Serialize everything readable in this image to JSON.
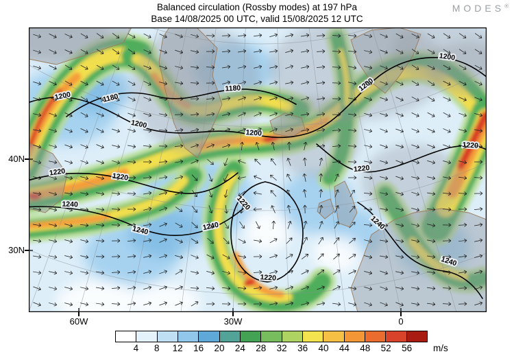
{
  "header": {
    "title": "Balanced circulation (Rossby modes) at 197 hPa",
    "subtitle": "Base 14/08/2025 00 UTC, valid 15/08/2025 12 UTC",
    "brand": "MODES",
    "brand_mark": "®"
  },
  "chart_data": {
    "type": "heatmap",
    "title": "Balanced circulation (Rossby modes) at 197 hPa",
    "subtitle": "Base 14/08/2025 00 UTC, valid 15/08/2025 12 UTC",
    "level_hPa": 197,
    "base_time": "14/08/2025 00 UTC",
    "valid_time": "15/08/2025 12 UTC",
    "x_axis": {
      "ticks": [
        "60W",
        "30W",
        "0"
      ]
    },
    "y_axis": {
      "ticks": [
        "40N",
        "30N"
      ]
    },
    "contour_values": [
      "1180",
      "1200",
      "1220",
      "1240"
    ],
    "colorbar": {
      "unit": "m/s",
      "ticks": [
        "4",
        "8",
        "12",
        "16",
        "20",
        "24",
        "28",
        "32",
        "36",
        "40",
        "44",
        "48",
        "52",
        "56"
      ],
      "colors": [
        "#ffffff",
        "#e4f2fb",
        "#bfdff4",
        "#90c7ea",
        "#5ea9d8",
        "#52a398",
        "#44a254",
        "#77bd5e",
        "#aed362",
        "#f2e34f",
        "#f5c044",
        "#f39636",
        "#ea6c2e",
        "#d8432a",
        "#a81c12"
      ]
    }
  }
}
